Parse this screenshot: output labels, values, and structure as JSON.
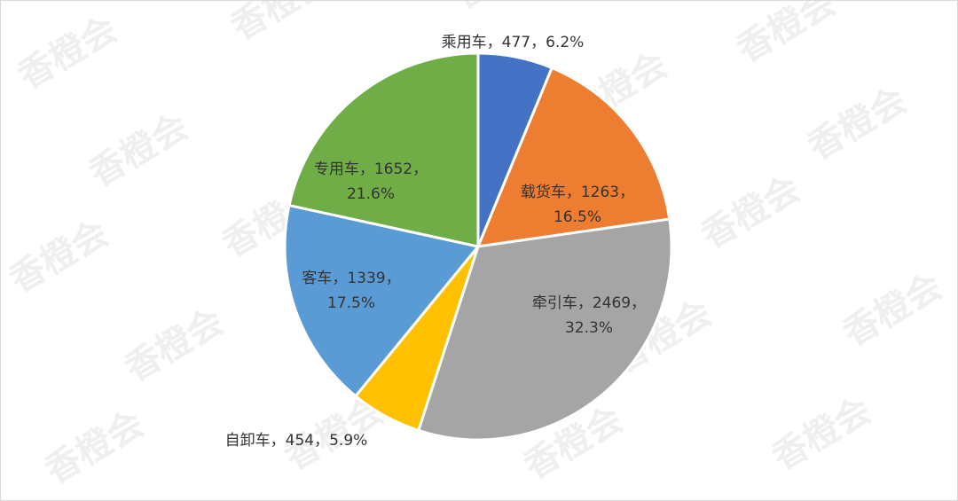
{
  "watermark": "香橙会",
  "chart_data": {
    "type": "pie",
    "title": "",
    "series": [
      {
        "label": "乘用车",
        "value": 477,
        "percent": "6.2%",
        "color": "#4472c4",
        "text": "乘用车，477，6.2%"
      },
      {
        "label": "载货车",
        "value": 1263,
        "percent": "16.5%",
        "color": "#ed7d31",
        "text": "载货车，1263，16.5%"
      },
      {
        "label": "牵引车",
        "value": 2469,
        "percent": "32.3%",
        "color": "#a5a5a5",
        "text": "牵引车，2469，32.3%"
      },
      {
        "label": "自卸车",
        "value": 454,
        "percent": "5.9%",
        "color": "#ffc000",
        "text": "自卸车，454，5.9%"
      },
      {
        "label": "客车",
        "value": 1339,
        "percent": "17.5%",
        "color": "#5b9bd5",
        "text": "客车，1339，17.5%"
      },
      {
        "label": "专用车",
        "value": 1652,
        "percent": "21.6%",
        "color": "#70ad47",
        "text": "专用车，1652，21.6%"
      }
    ],
    "start_angle_deg": 0,
    "direction": "clockwise",
    "legend": "none"
  }
}
